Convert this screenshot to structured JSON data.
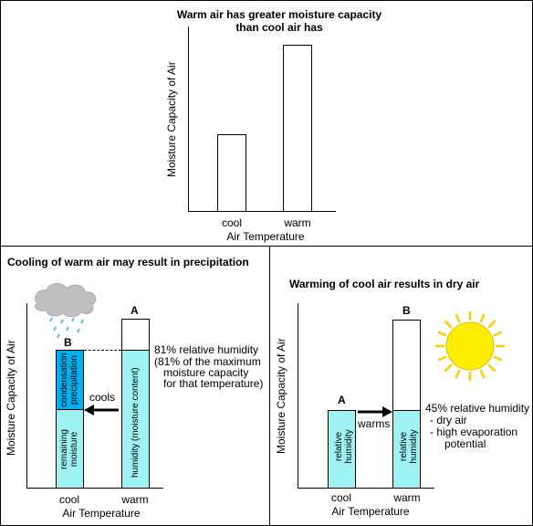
{
  "top": {
    "title_line1": "Warm air has greater moisture capacity",
    "title_line2": "than cool air has",
    "ylabel": "Moisture Capacity of Air",
    "xlabel": "Air Temperature",
    "cat_cool": "cool",
    "cat_warm": "warm"
  },
  "left": {
    "title": "Cooling of warm air may result in precipitation",
    "ylabel": "Moisture Capacity of Air",
    "xlabel": "Air Temperature",
    "cat_cool": "cool",
    "cat_warm": "warm",
    "label_a": "A",
    "label_b": "B",
    "cools": "cools",
    "bar_b_top": "condensation precipitation",
    "bar_b_bottom": "remaining moisture",
    "bar_a_inner": "humidity (moisture content)",
    "rh_line1": "81% relative humidity",
    "rh_line2": "(81% of the maximum",
    "rh_line3": "moisture capacity",
    "rh_line4": "for that temperature)"
  },
  "right": {
    "title": "Warming of cool air results in dry air",
    "ylabel": "Moisture Capacity of Air",
    "xlabel": "Air Temperature",
    "cat_cool": "cool",
    "cat_warm": "warm",
    "label_a": "A",
    "label_b": "B",
    "warms": "warms",
    "bar_inner": "relative humidity",
    "rh_line1": "45% relative humidity",
    "rh_line2": "- dry air",
    "rh_line3": "- high evaporation",
    "rh_line4": "potential"
  },
  "colors": {
    "condensation": "#00b0ee",
    "humidity": "#9ff2f2",
    "sun": "#ffee00"
  },
  "icons": [
    "rain-cloud-icon",
    "sun-icon",
    "right-arrow-icon",
    "left-arrow-icon"
  ]
}
